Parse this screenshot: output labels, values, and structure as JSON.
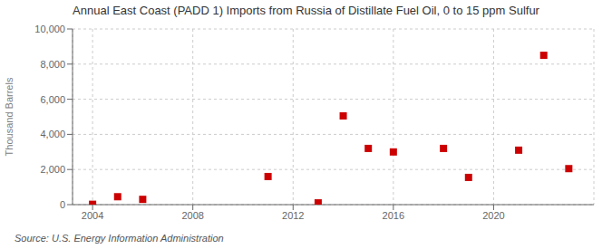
{
  "chart_data": {
    "type": "scatter",
    "title": "Annual East Coast (PADD 1) Imports from Russia of Distillate Fuel Oil, 0 to 15 ppm Sulfur",
    "ylabel": "Thousand Barrels",
    "annotations": [
      "Source: U.S. Energy Information Administration"
    ],
    "x": [
      2004,
      2005,
      2006,
      2011,
      2013,
      2014,
      2015,
      2016,
      2018,
      2019,
      2021,
      2022,
      2023
    ],
    "values": [
      20,
      450,
      300,
      1600,
      100,
      5050,
      3200,
      3000,
      3200,
      1550,
      3100,
      8500,
      2050
    ],
    "color": "#cc0000",
    "marker": "square",
    "xlim": [
      2003.2,
      2024.0
    ],
    "xticks": [
      2004,
      2008,
      2012,
      2016,
      2020
    ],
    "ylim": [
      0,
      10000
    ],
    "yticks": [
      0,
      {
        "value": 2000,
        "label": "2,000"
      },
      {
        "value": 4000,
        "label": "4,000"
      },
      {
        "value": 6000,
        "label": "6,000"
      },
      {
        "value": 8000,
        "label": "8,000"
      },
      {
        "value": 10000,
        "label": "10,000"
      }
    ],
    "grid": true
  }
}
